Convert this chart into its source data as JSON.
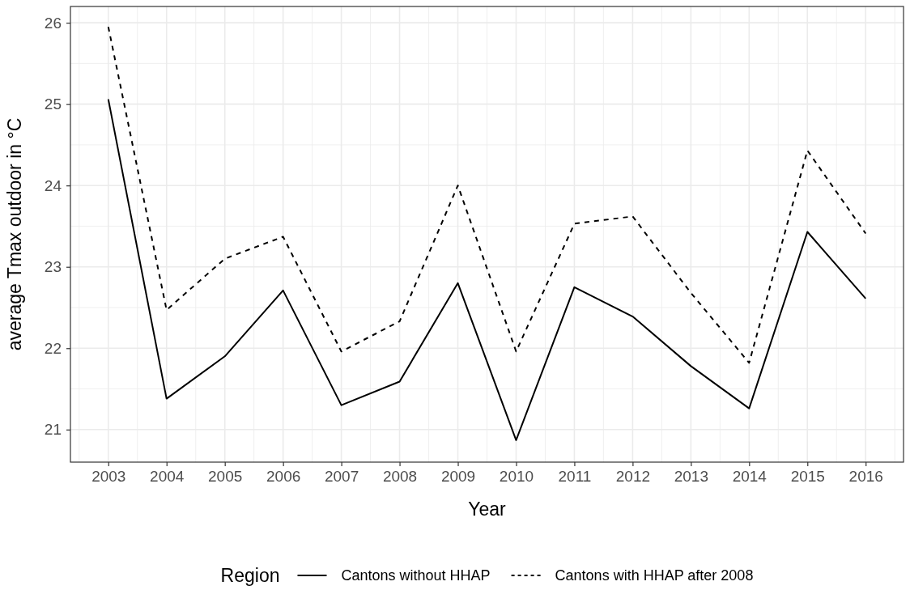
{
  "chart_data": {
    "type": "line",
    "xlabel": "Year",
    "ylabel": "average Tmax outdoor in °C",
    "legend_title": "Region",
    "x": [
      2003,
      2004,
      2005,
      2006,
      2007,
      2008,
      2009,
      2010,
      2011,
      2012,
      2013,
      2014,
      2015,
      2016
    ],
    "series": [
      {
        "name": "Cantons without HHAP",
        "color": "#000000",
        "line_style": "solid",
        "values": [
          25.06,
          21.38,
          21.9,
          22.71,
          21.3,
          21.59,
          22.8,
          20.87,
          22.75,
          22.39,
          21.78,
          21.26,
          23.43,
          22.61
        ]
      },
      {
        "name": "Cantons with HHAP after 2008",
        "color": "#000000",
        "line_style": "dashed",
        "values": [
          25.95,
          22.47,
          23.1,
          23.37,
          21.96,
          22.33,
          24.0,
          21.96,
          23.53,
          23.62,
          22.68,
          21.82,
          24.43,
          23.41
        ]
      }
    ],
    "xlim": [
      2002.35,
      2016.65
    ],
    "ylim": [
      20.6,
      26.2
    ],
    "xticks": [
      2003,
      2004,
      2005,
      2006,
      2007,
      2008,
      2009,
      2010,
      2011,
      2012,
      2013,
      2014,
      2015,
      2016
    ],
    "yticks": [
      21,
      22,
      23,
      24,
      25,
      26
    ],
    "grid": true,
    "legend": "bottom"
  }
}
